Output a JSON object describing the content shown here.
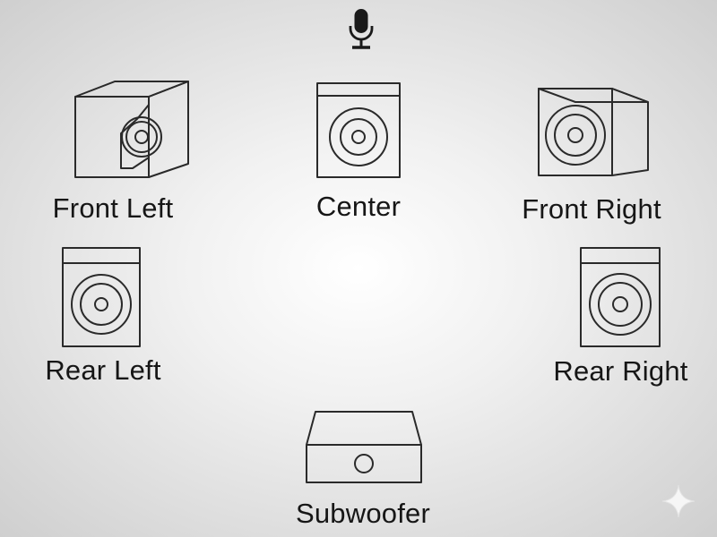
{
  "speakers": {
    "front_left": {
      "label": "Front Left"
    },
    "center": {
      "label": "Center"
    },
    "front_right": {
      "label": "Front Right"
    },
    "rear_left": {
      "label": "Rear Left"
    },
    "rear_right": {
      "label": "Rear Right"
    },
    "subwoofer": {
      "label": "Subwoofer"
    }
  },
  "icons": {
    "mic": "microphone-icon",
    "sparkle": "sparkle-icon"
  }
}
